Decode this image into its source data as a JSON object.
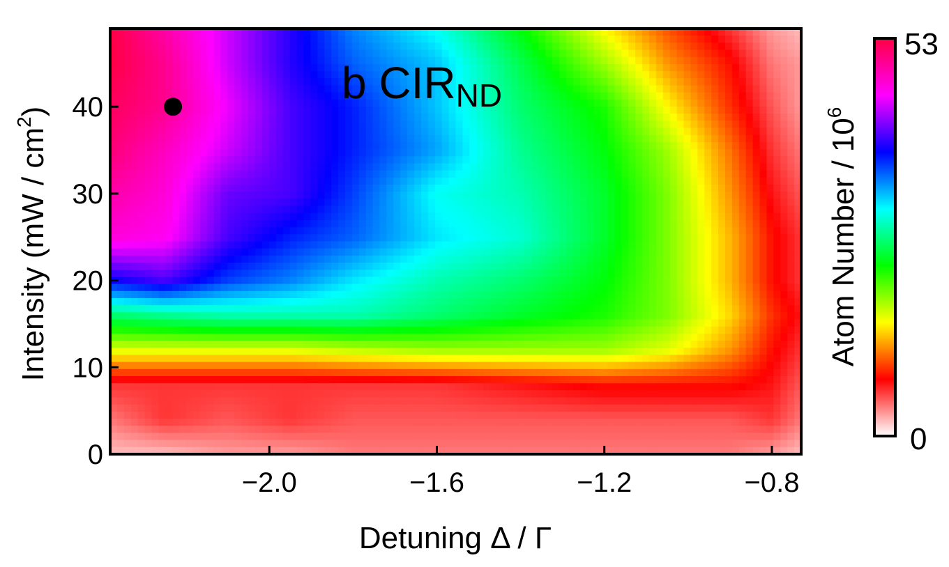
{
  "chart_data": {
    "type": "heatmap",
    "title": {
      "prefix": "b CIR",
      "subscript": "ND"
    },
    "xlabel": "Detuning Δ / Γ",
    "ylabel": {
      "text": "Intensity (mW / cm",
      "superscript": "2",
      "suffix": ")"
    },
    "colorbar_label": {
      "text": "Atom Number / 10",
      "superscript": "6"
    },
    "xlim": [
      -2.38,
      -0.73
    ],
    "ylim": [
      0,
      49
    ],
    "x_ticks": [
      {
        "value": -2.0,
        "label": "−2.0"
      },
      {
        "value": -1.6,
        "label": "−1.6"
      },
      {
        "value": -1.2,
        "label": "−1.2"
      },
      {
        "value": -0.8,
        "label": "−0.8"
      }
    ],
    "y_ticks": [
      {
        "value": 0,
        "label": "0"
      },
      {
        "value": 10,
        "label": "10"
      },
      {
        "value": 20,
        "label": "20"
      },
      {
        "value": 30,
        "label": "30"
      },
      {
        "value": 40,
        "label": "40"
      }
    ],
    "colorbar": {
      "min": 0,
      "max": 53,
      "min_label": "0",
      "max_label": "53",
      "colormap": [
        "#ffffff",
        "#ff0000",
        "#ffff00",
        "#00ff00",
        "#00ffff",
        "#0000ff",
        "#ff00ff",
        "#ff0044"
      ]
    },
    "x": [
      -2.38,
      -2.25,
      -2.1,
      -1.95,
      -1.8,
      -1.6,
      -1.4,
      -1.2,
      -1.05,
      -0.9,
      -0.8,
      -0.73
    ],
    "y": [
      0,
      4,
      8,
      12,
      16,
      20,
      25,
      30,
      35,
      40,
      45,
      49
    ],
    "z": [
      [
        2,
        2,
        3,
        3,
        4,
        4,
        4,
        4,
        4,
        4,
        3,
        2
      ],
      [
        4,
        6,
        5,
        6,
        5,
        5,
        5,
        5,
        5,
        5,
        6,
        4
      ],
      [
        6,
        6,
        6,
        6,
        6,
        6,
        7,
        8,
        8,
        8,
        7,
        5
      ],
      [
        16,
        16,
        16,
        16,
        17,
        18,
        18,
        18,
        16,
        12,
        8,
        6
      ],
      [
        26,
        27,
        28,
        28,
        28,
        26,
        24,
        22,
        19,
        14,
        9,
        7
      ],
      [
        38,
        40,
        36,
        34,
        31,
        28,
        26,
        23,
        19,
        13,
        8,
        6
      ],
      [
        47,
        46,
        40,
        37,
        35,
        31,
        29,
        24,
        19,
        13,
        8,
        6
      ],
      [
        49,
        47,
        41,
        40,
        36,
        30,
        28,
        24,
        19,
        12,
        7,
        5
      ],
      [
        51,
        48,
        44,
        40,
        37,
        33,
        27,
        23,
        18,
        11,
        6,
        4
      ],
      [
        52,
        50,
        45,
        40,
        37,
        32,
        26,
        22,
        15,
        9,
        5,
        3
      ],
      [
        53,
        50,
        44,
        39,
        35,
        32,
        25,
        18,
        12,
        8,
        4,
        3
      ],
      [
        53,
        49,
        44,
        39,
        34,
        30,
        23,
        15,
        10,
        6,
        3,
        2
      ]
    ],
    "marker": {
      "x": -2.23,
      "y": 40,
      "color": "#000000"
    }
  }
}
